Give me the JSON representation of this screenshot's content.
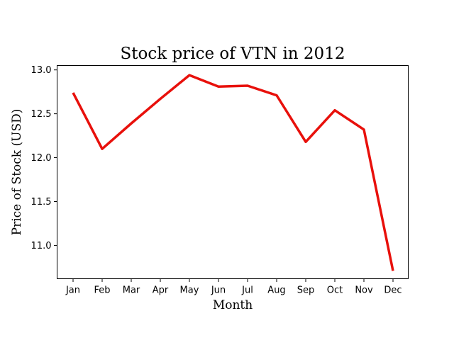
{
  "chart_data": {
    "type": "line",
    "title": "Stock price of VTN in 2012",
    "xlabel": "Month",
    "ylabel": "Price of Stock (USD)",
    "categories": [
      "Jan",
      "Feb",
      "Mar",
      "Apr",
      "May",
      "Jun",
      "Jul",
      "Aug",
      "Sep",
      "Oct",
      "Nov",
      "Dec"
    ],
    "series": [
      {
        "color": "#e8100b",
        "values": [
          12.74,
          12.1,
          12.39,
          12.67,
          12.94,
          12.81,
          12.82,
          12.71,
          12.18,
          12.54,
          12.32,
          10.71
        ]
      }
    ],
    "yticks": [
      11.0,
      11.5,
      12.0,
      12.5,
      13.0
    ],
    "ylim": [
      10.62,
      13.05
    ],
    "grid": false,
    "legend": "none"
  }
}
